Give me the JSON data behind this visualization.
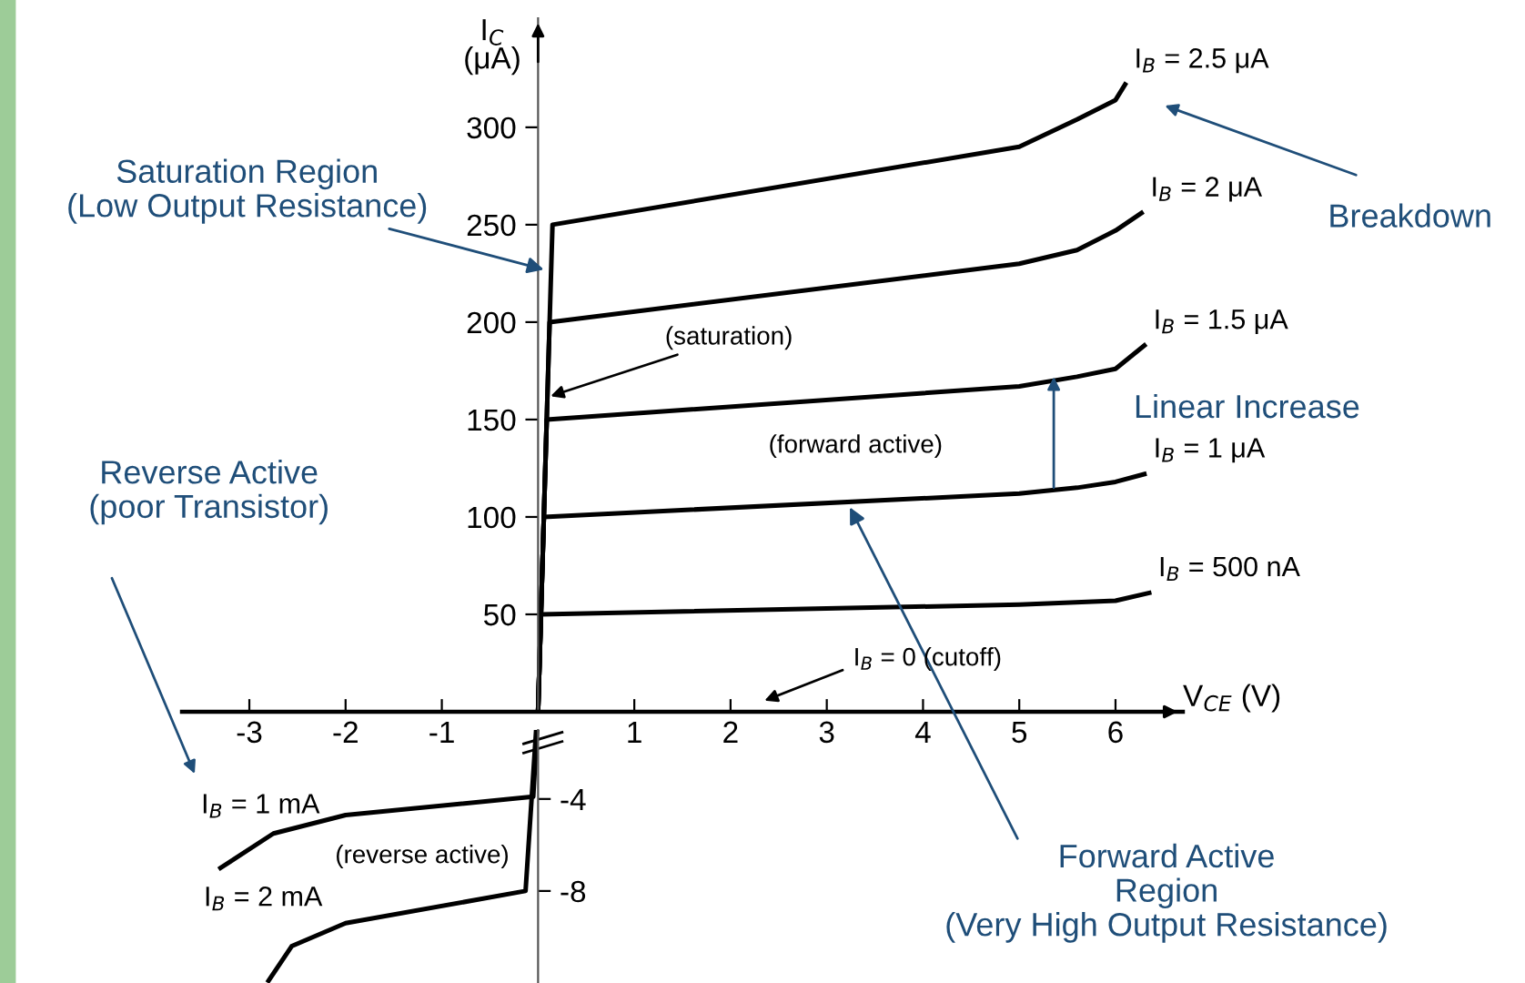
{
  "chart_data": [
    {
      "type": "line",
      "xlabel": "V$_{CE}$ (V)",
      "ylabel": "I$_{C}$\n(μA)",
      "xlim": [
        -3.7,
        6.7
      ],
      "xticks": [
        -3,
        -2,
        -1,
        1,
        2,
        3,
        4,
        5,
        6
      ],
      "ylim": [
        0,
        356
      ],
      "yticks": [
        50,
        100,
        150,
        200,
        250,
        300
      ],
      "series": [
        {
          "name": "I$_{B}$ = 2.5 μA",
          "color": "#000000",
          "x": [
            0,
            0.15,
            5,
            5.6,
            6.0,
            6.1
          ],
          "values": [
            0,
            250,
            290,
            304,
            314,
            322
          ]
        },
        {
          "name": "I$_{B}$ = 2 μA",
          "color": "#000000",
          "x": [
            0,
            0.12,
            5,
            5.6,
            6.0,
            6.27
          ],
          "values": [
            0,
            200,
            230,
            237,
            247,
            256
          ]
        },
        {
          "name": "I$_{B}$ = 1.5 μA",
          "color": "#000000",
          "x": [
            0,
            0.09,
            5,
            5.6,
            6.0,
            6.3
          ],
          "values": [
            0,
            150,
            167,
            172,
            176,
            188
          ]
        },
        {
          "name": "I$_{B}$ = 1 μA",
          "color": "#000000",
          "x": [
            0,
            0.06,
            5,
            5.6,
            6.0,
            6.3
          ],
          "values": [
            0,
            100,
            112,
            115,
            118,
            122
          ]
        },
        {
          "name": "I$_{B}$ = 500 nA",
          "color": "#000000",
          "x": [
            0,
            0.03,
            5,
            6.0,
            6.35
          ],
          "values": [
            0,
            50,
            55,
            57,
            61
          ]
        }
      ],
      "annotations": [
        {
          "text": "Saturation Region\n(Low Output Resistance)",
          "x": 0.06,
          "y": 227
        },
        "Breakdown",
        "Linear Increase",
        {
          "text": "Forward Active\nRegion\n(Very High Output Resistance)",
          "x": 3.24,
          "y": 105
        },
        {
          "text": "(saturation)",
          "x": 0.13,
          "y": 162
        },
        "(forward active)",
        "I$_{B}$ = 0 (cutoff)"
      ]
    },
    {
      "type": "line",
      "xlim": [
        -3.7,
        6.7
      ],
      "ylim": [
        -12,
        -1
      ],
      "yticks": [
        -4,
        -8
      ],
      "tick_labels": "y",
      "series": [
        {
          "name": "I$_{B}$ = 1 mA",
          "color": "#000000",
          "x": [
            -3.3,
            -2.75,
            -2.0,
            -0.05,
            -0.01
          ],
          "values": [
            -7.0,
            -5.5,
            -4.7,
            -3.9,
            -1
          ]
        },
        {
          "name": "I$_{B}$ = 2 mA",
          "color": "#000000",
          "x": [
            -2.8,
            -2.56,
            -2.0,
            -0.13,
            -0.02
          ],
          "values": [
            -11.9,
            -10.4,
            -9.4,
            -8.0,
            -1
          ]
        }
      ],
      "annotations": [
        "Reverse Active\n(poor Transistor)",
        "(reverse active)"
      ]
    }
  ]
}
